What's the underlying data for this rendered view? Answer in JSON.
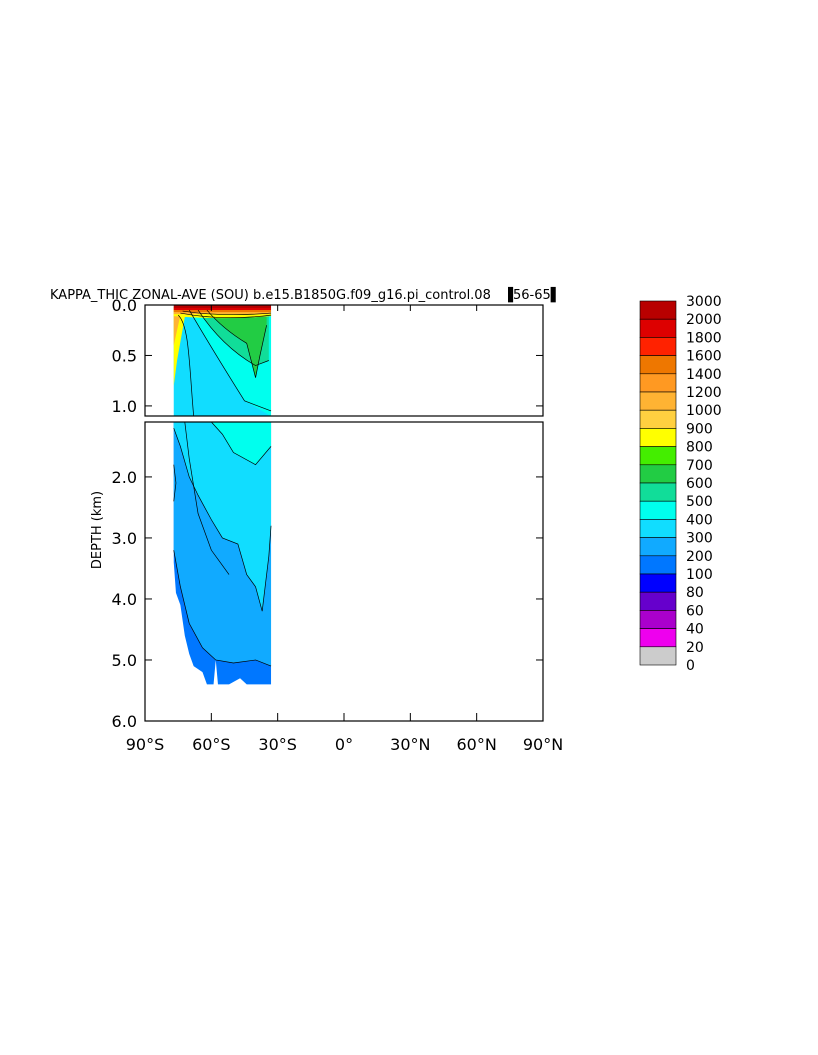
{
  "chart_data": {
    "type": "heatmap",
    "title": "KAPPA_THIC ZONAL-AVE (SOU) b.e15.B1850G.f09_g16.pi_control.08 █56-65█",
    "title_text": "KAPPA_THIC ZONAL-AVE (SOU) b.e15.B1850G.f09_g16.pi_control.08",
    "title_years": "56-65",
    "xlabel": "",
    "ylabel": "DEPTH (km)",
    "x_ticks": [
      "90°S",
      "60°S",
      "30°S",
      "0°",
      "30°N",
      "60°N",
      "90°N"
    ],
    "x_tick_values": [
      -90,
      -60,
      -30,
      0,
      30,
      60,
      90
    ],
    "xlim": [
      -90,
      90
    ],
    "upper_panel": {
      "ylim": [
        0,
        1.1
      ],
      "y_ticks": [
        "0.0",
        "0.5",
        "1.0"
      ],
      "y_tick_values": [
        0,
        0.5,
        1.0
      ]
    },
    "lower_panel": {
      "ylim": [
        1.1,
        6.0
      ],
      "y_ticks": [
        "2.0",
        "3.0",
        "4.0",
        "5.0",
        "6.0"
      ],
      "y_tick_values": [
        2,
        3,
        4,
        5,
        6
      ]
    },
    "colorbar": {
      "levels": [
        "3000",
        "2000",
        "1800",
        "1600",
        "1400",
        "1200",
        "1000",
        "900",
        "800",
        "700",
        "600",
        "500",
        "400",
        "300",
        "200",
        "100",
        "80",
        "60",
        "40",
        "20",
        "0"
      ],
      "colors": [
        "#b80000",
        "#dd0000",
        "#ff2200",
        "#ee7700",
        "#ff9922",
        "#ffb333",
        "#ffd040",
        "#ffff00",
        "#44ee00",
        "#22cc44",
        "#11dd99",
        "#00ffee",
        "#11ddff",
        "#11aaff",
        "#0077ff",
        "#0000ff",
        "#6600cc",
        "#aa00cc",
        "#ee00ee",
        "#cccccc",
        "#707070"
      ]
    },
    "field": {
      "lat_range": [
        -77,
        -33
      ],
      "surface_value": 3000,
      "bottom_depth_km": 5.4,
      "description_regions": [
        {
          "lat": [
            -77,
            -33
          ],
          "depth_km": [
            0,
            0.05
          ],
          "value": 3000
        },
        {
          "lat": [
            -74,
            -40
          ],
          "depth_km": [
            0.05,
            0.6
          ],
          "value": 700
        },
        {
          "lat": [
            -77,
            -33
          ],
          "depth_km": [
            0.05,
            3.2
          ],
          "value": 450
        },
        {
          "lat": [
            -77,
            -33
          ],
          "depth_km": [
            3.0,
            5.0
          ],
          "value": 350
        },
        {
          "lat": [
            -70,
            -33
          ],
          "depth_km": [
            4.6,
            5.4
          ],
          "value": 250
        }
      ]
    }
  }
}
